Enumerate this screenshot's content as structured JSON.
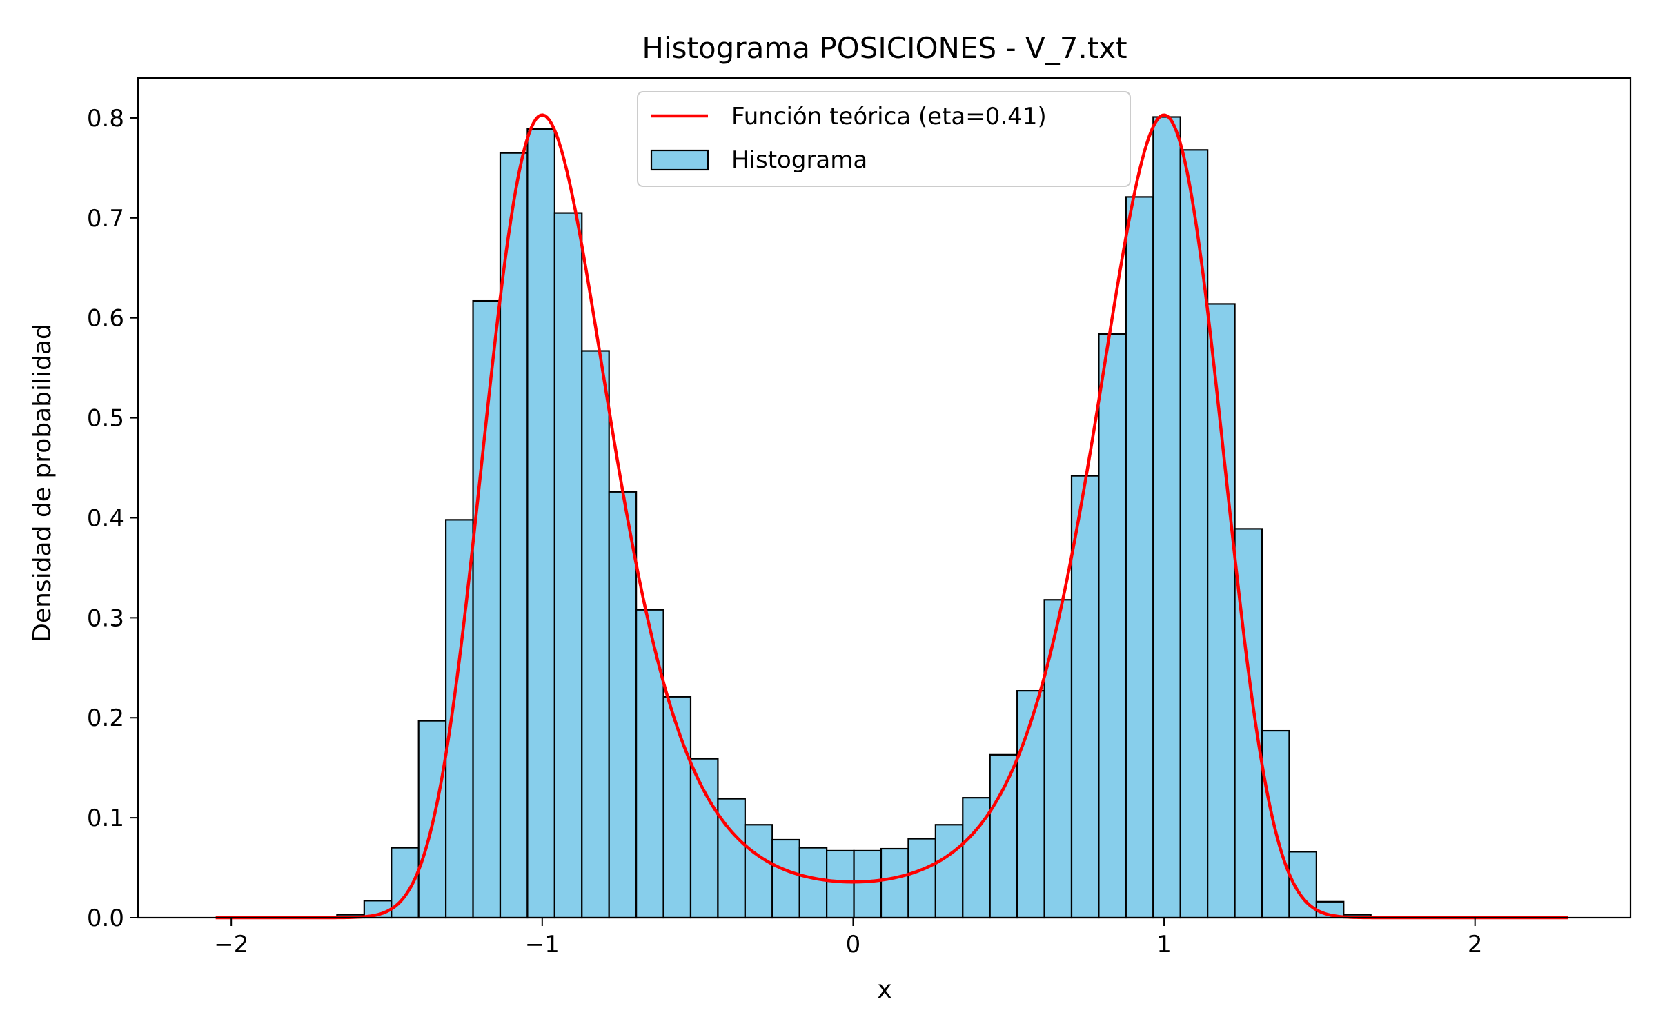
{
  "chart_data": {
    "type": "histogram",
    "title": "Histograma POSICIONES - V_7.txt",
    "xlabel": "x",
    "ylabel": "Densidad de probabilidad",
    "xlim": [
      -2.3,
      2.5
    ],
    "ylim": [
      0,
      0.84
    ],
    "xticks": [
      -2,
      -1,
      0,
      1,
      2
    ],
    "xtick_labels": [
      "−2",
      "−1",
      "0",
      "1",
      "2"
    ],
    "yticks": [
      0.0,
      0.1,
      0.2,
      0.3,
      0.4,
      0.5,
      0.6,
      0.7,
      0.8
    ],
    "ytick_labels": [
      "0.0",
      "0.1",
      "0.2",
      "0.3",
      "0.4",
      "0.5",
      "0.6",
      "0.7",
      "0.8"
    ],
    "grid": false,
    "legend_position": "top-center",
    "legend": {
      "line_label": "Función teórica (eta=0.41)",
      "hist_label": "Histograma"
    },
    "histogram": {
      "name": "Histograma",
      "color": "#87ceeb",
      "edgecolor": "#000000",
      "bin_start": -1.66,
      "bin_width": 0.0875,
      "values": [
        0.003,
        0.017,
        0.07,
        0.197,
        0.398,
        0.617,
        0.765,
        0.789,
        0.705,
        0.567,
        0.426,
        0.308,
        0.221,
        0.159,
        0.119,
        0.093,
        0.078,
        0.07,
        0.067,
        0.067,
        0.069,
        0.079,
        0.093,
        0.12,
        0.163,
        0.227,
        0.318,
        0.442,
        0.584,
        0.721,
        0.801,
        0.768,
        0.614,
        0.389,
        0.187,
        0.066,
        0.016,
        0.003
      ]
    },
    "theoretical_curve": {
      "name": "Función teórica (eta=0.41)",
      "color": "#ff0000",
      "x_range": [
        -2.05,
        2.3
      ],
      "peak": 0.803,
      "center_value": 0.066
    }
  }
}
